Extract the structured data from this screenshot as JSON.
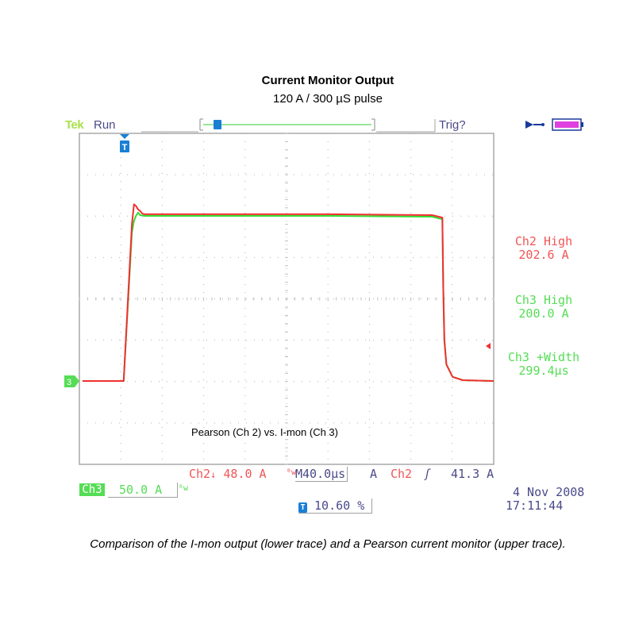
{
  "header": {
    "title": "Current Monitor Output",
    "subtitle": "120 A / 300 µS pulse"
  },
  "scope": {
    "brand": "Tek",
    "run_state": "Run",
    "trigger_state": "Trig?",
    "battery_icon": "battery-icon",
    "power_icon": "power-plug-icon",
    "trace_label": "Pearson (Ch 2) vs. I-mon (Ch 3)",
    "ch3_ground_marker": "3",
    "colors": {
      "ch2": "#f03030",
      "ch3": "#33dd33",
      "accent": "#1a7fd4"
    }
  },
  "measurements": {
    "ch2_high": {
      "label": "Ch2 High",
      "value": "202.6 A"
    },
    "ch3_high": {
      "label": "Ch3 High",
      "value": "200.0 A"
    },
    "ch3_width": {
      "label": "Ch3 +Width",
      "value": "299.4µs"
    }
  },
  "status": {
    "ch2_label": "Ch2",
    "ch2_scale": "48.0 A",
    "bw_symbol": "ᴮw",
    "timebase_prefix": "M",
    "timebase": "40.0µs",
    "trigger_mode": "A",
    "trigger_channel": "Ch2",
    "trigger_slope": "ʃ",
    "trigger_level": "41.3 A",
    "ch3_label": "Ch3",
    "ch3_scale": "50.0 A",
    "trigger_position": "10.60 %",
    "date": "4 Nov 2008",
    "time": "17:11:44"
  },
  "caption": "Comparison of the I-mon output (lower trace) and a Pearson current monitor (upper trace).",
  "chart_data": {
    "type": "line",
    "title": "Pearson (Ch 2) vs. I-mon (Ch 3)",
    "x_unit": "µs",
    "xlim": [
      -40,
      360
    ],
    "ylim": [
      0,
      240
    ],
    "series": [
      {
        "name": "Ch2",
        "x": [
          -40,
          -1,
          0,
          8,
          10,
          12,
          14,
          16,
          18,
          20,
          40,
          100,
          200,
          300,
          310,
          311,
          312,
          314,
          320,
          330,
          360
        ],
        "y": [
          0,
          0,
          0,
          190,
          214,
          212,
          208,
          206,
          203,
          202,
          202,
          202,
          202,
          201,
          198,
          110,
          50,
          20,
          5,
          1,
          0
        ]
      },
      {
        "name": "Ch3",
        "x": [
          -40,
          -1,
          0,
          8,
          10,
          12,
          14,
          16,
          20,
          40,
          100,
          200,
          300,
          310,
          311,
          312,
          314,
          320,
          330,
          360
        ],
        "y": [
          0,
          0,
          0,
          180,
          194,
          200,
          204,
          201,
          200,
          200,
          200,
          200,
          199,
          196,
          110,
          50,
          20,
          5,
          1,
          0
        ]
      }
    ]
  }
}
